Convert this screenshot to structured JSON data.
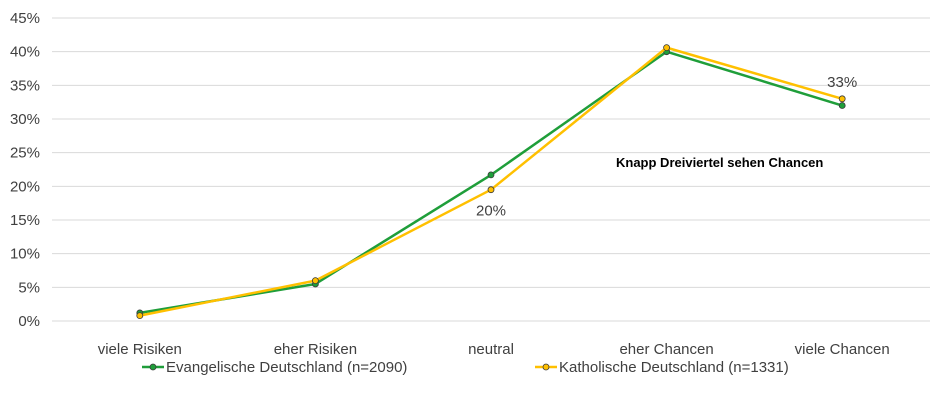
{
  "chart_data": {
    "type": "line",
    "categories": [
      "viele Risiken",
      "eher Risiken",
      "neutral",
      "eher Chancen",
      "viele Chancen"
    ],
    "series": [
      {
        "name": "Evangelische Deutschland (n=2090)",
        "color": "#1f9e3a",
        "values": [
          1.2,
          5.5,
          21.7,
          40.0,
          32.0
        ]
      },
      {
        "name": "Katholische Deutschland (n=1331)",
        "color": "#ffc000",
        "values": [
          0.8,
          6.0,
          19.5,
          40.6,
          33.0
        ]
      }
    ],
    "y_ticks": [
      "0%",
      "5%",
      "10%",
      "15%",
      "20%",
      "25%",
      "30%",
      "35%",
      "40%",
      "45%"
    ],
    "ylim": [
      0,
      45
    ],
    "grid": true,
    "legend_position": "bottom",
    "data_labels": [
      {
        "series": 1,
        "index": 2,
        "text": "20%"
      },
      {
        "series": 1,
        "index": 4,
        "text": "33%"
      }
    ],
    "annotation": "Knapp Dreiviertel sehen Chancen"
  }
}
